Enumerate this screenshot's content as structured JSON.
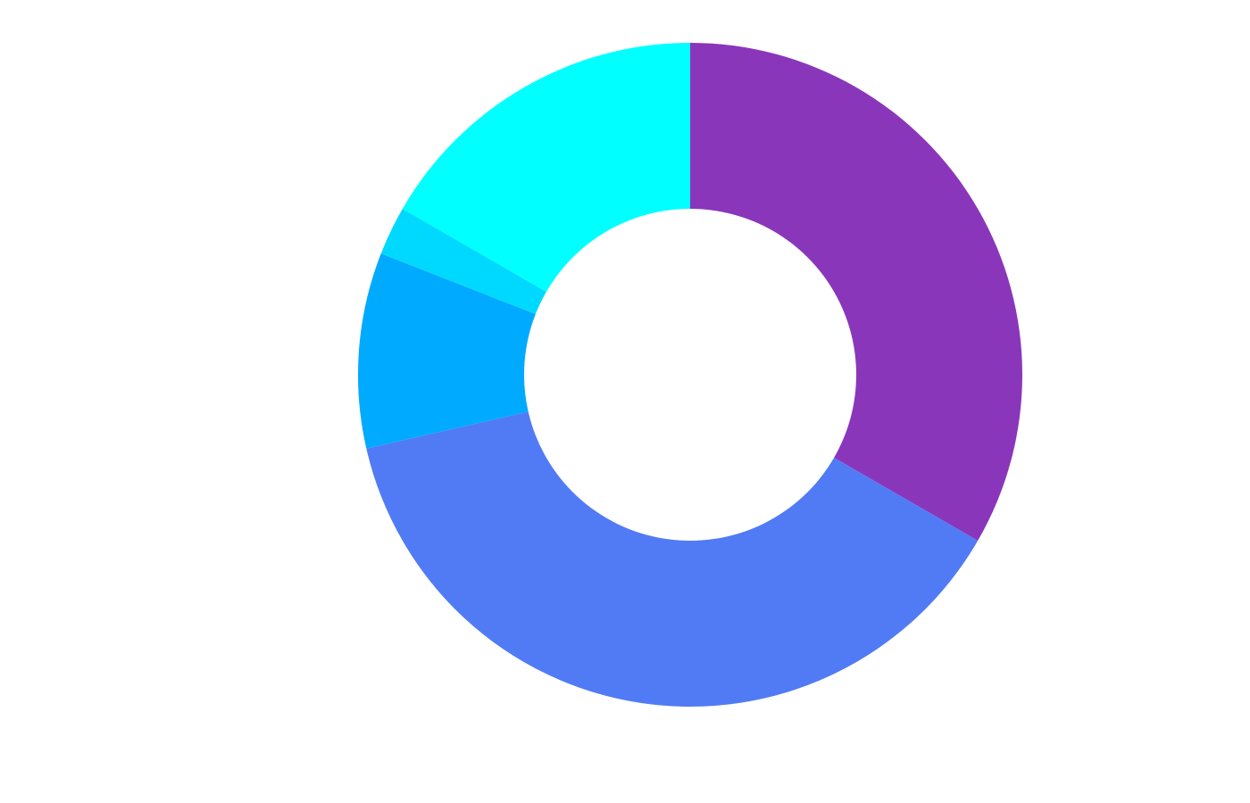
{
  "chart_data": {
    "type": "pie",
    "style": "donut",
    "start": "12 o'clock",
    "direction": "clockwise",
    "slices": [
      {
        "value": 35.0,
        "color": "#8a36bb"
      },
      {
        "value": 40.0,
        "color": "#517bf5"
      },
      {
        "value": 10.0,
        "color": "#00aaff"
      },
      {
        "value": 2.5,
        "color": "#00d9ff"
      },
      {
        "value": 17.5,
        "color": "#00ffff"
      }
    ],
    "legend": "none",
    "title": ""
  }
}
